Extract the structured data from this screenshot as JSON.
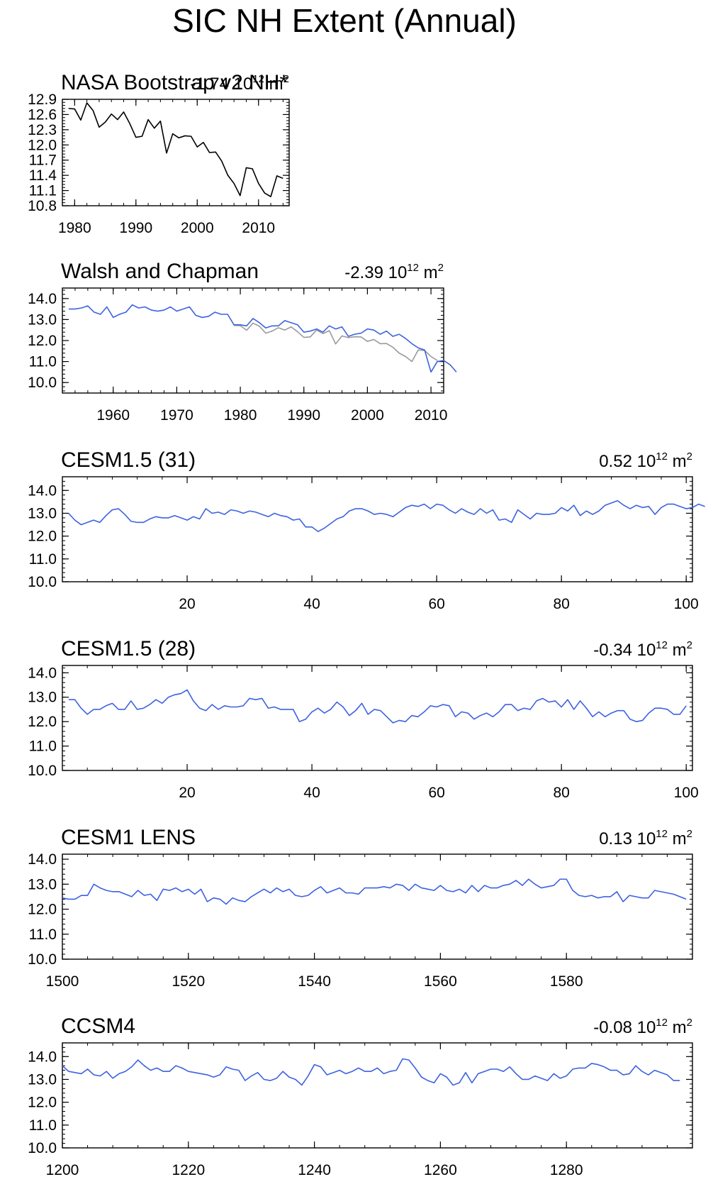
{
  "figure_title": "SIC NH Extent (Annual)",
  "units": "10",
  "units_exp": "12",
  "units_m": "m",
  "units_sq": "2",
  "colors": {
    "model": "#3d62e0",
    "nasa": "#000000",
    "obs": "#9a9a9a",
    "axis": "#000000"
  },
  "chart_data": [
    {
      "type": "line",
      "title": "NASA Bootstrap v2 NH*",
      "trend": "-1.74",
      "xlim": [
        1978,
        2015
      ],
      "ylim": [
        10.8,
        12.9
      ],
      "yticks": [
        10.8,
        11.1,
        11.4,
        11.7,
        12.0,
        12.3,
        12.6,
        12.9
      ],
      "ytick_labels": [
        "10.8",
        "11.1",
        "11.4",
        "11.7",
        "12.0",
        "12.3",
        "12.6",
        "12.9"
      ],
      "xticks": [
        1980,
        1990,
        2000,
        2010
      ],
      "xtick_labels": [
        "1980",
        "1990",
        "2000",
        "2010"
      ],
      "x_start": 1979,
      "series": [
        {
          "name": "NASA Bootstrap",
          "color": "nasa",
          "values": [
            12.72,
            12.71,
            12.49,
            12.83,
            12.68,
            12.35,
            12.45,
            12.61,
            12.5,
            12.65,
            12.42,
            12.15,
            12.17,
            12.5,
            12.33,
            12.47,
            11.84,
            12.22,
            12.14,
            12.18,
            12.17,
            11.96,
            12.05,
            11.85,
            11.86,
            11.68,
            11.4,
            11.24,
            11.0,
            11.55,
            11.53,
            11.24,
            11.05,
            10.98,
            11.39,
            11.34
          ]
        }
      ]
    },
    {
      "type": "line",
      "title": "Walsh and Chapman",
      "trend": "-2.39",
      "xlim": [
        1952,
        2012
      ],
      "ylim": [
        9.5,
        14.5
      ],
      "yticks": [
        10.0,
        11.0,
        12.0,
        13.0,
        14.0
      ],
      "ytick_labels": [
        "10.0",
        "11.0",
        "12.0",
        "13.0",
        "14.0"
      ],
      "xticks": [
        1960,
        1970,
        1980,
        1990,
        2000,
        2010
      ],
      "xtick_labels": [
        "1960",
        "1970",
        "1980",
        "1990",
        "2000",
        "2010"
      ],
      "x_start": 1953,
      "series": [
        {
          "name": "Walsh and Chapman",
          "color": "model",
          "values": [
            13.5,
            13.5,
            13.55,
            13.65,
            13.35,
            13.25,
            13.6,
            13.1,
            13.25,
            13.35,
            13.7,
            13.55,
            13.6,
            13.45,
            13.4,
            13.45,
            13.6,
            13.4,
            13.5,
            13.6,
            13.2,
            13.1,
            13.15,
            13.35,
            13.25,
            13.25,
            12.75,
            12.75,
            12.7,
            13.05,
            12.85,
            12.6,
            12.7,
            12.7,
            12.95,
            12.85,
            12.75,
            12.4,
            12.45,
            12.55,
            12.4,
            12.7,
            12.55,
            12.65,
            12.2,
            12.3,
            12.35,
            12.55,
            12.5,
            12.3,
            12.45,
            12.2,
            12.3,
            12.1,
            11.85,
            11.65,
            11.55,
            10.5,
            11.0,
            11.05,
            10.85,
            10.5
          ]
        },
        {
          "name": "NASA Bootstrap",
          "color": "obs",
          "x_start": 1979,
          "values": [
            12.72,
            12.71,
            12.49,
            12.83,
            12.68,
            12.35,
            12.45,
            12.61,
            12.5,
            12.65,
            12.42,
            12.15,
            12.17,
            12.5,
            12.33,
            12.47,
            11.84,
            12.22,
            12.14,
            12.18,
            12.17,
            11.96,
            12.05,
            11.85,
            11.86,
            11.68,
            11.4,
            11.24,
            11.0,
            11.55,
            11.53,
            11.24,
            11.05
          ]
        }
      ]
    },
    {
      "type": "line",
      "title": "CESM1.5 (31)",
      "trend": "0.52",
      "xlim": [
        0,
        101
      ],
      "ylim": [
        10.0,
        14.6
      ],
      "yticks": [
        10.0,
        11.0,
        12.0,
        13.0,
        14.0
      ],
      "ytick_labels": [
        "10.0",
        "11.0",
        "12.0",
        "13.0",
        "14.0"
      ],
      "xticks": [
        20,
        40,
        60,
        80,
        100
      ],
      "xtick_labels": [
        "20",
        "40",
        "60",
        "80",
        "100"
      ],
      "x_start": 1,
      "series": [
        {
          "name": "CESM1.5 (31)",
          "color": "model",
          "values": [
            13.0,
            12.7,
            12.5,
            12.6,
            12.7,
            12.6,
            12.9,
            13.15,
            13.2,
            12.95,
            12.65,
            12.6,
            12.6,
            12.75,
            12.85,
            12.8,
            12.8,
            12.9,
            12.8,
            12.7,
            12.85,
            12.75,
            13.2,
            13.0,
            13.05,
            12.95,
            13.15,
            13.1,
            13.0,
            13.1,
            13.05,
            12.95,
            12.85,
            13.0,
            12.9,
            12.85,
            12.7,
            12.75,
            12.4,
            12.4,
            12.2,
            12.35,
            12.55,
            12.75,
            12.85,
            13.1,
            13.2,
            13.2,
            13.1,
            12.95,
            13.0,
            12.95,
            12.85,
            13.05,
            13.25,
            13.35,
            13.3,
            13.4,
            13.2,
            13.4,
            13.35,
            13.15,
            13.0,
            13.2,
            13.05,
            12.95,
            13.2,
            13.0,
            13.15,
            12.7,
            12.75,
            12.6,
            13.15,
            12.95,
            12.75,
            13.0,
            12.95,
            12.95,
            13.0,
            13.25,
            13.1,
            13.35,
            12.9,
            13.1,
            12.95,
            13.1,
            13.35,
            13.45,
            13.55,
            13.35,
            13.2,
            13.35,
            13.25,
            13.3,
            12.95,
            13.25,
            13.4,
            13.4,
            13.3,
            13.2,
            13.25,
            13.4,
            13.3
          ]
        }
      ]
    },
    {
      "type": "line",
      "title": "CESM1.5 (28)",
      "trend": "-0.34",
      "xlim": [
        0,
        101
      ],
      "ylim": [
        10.0,
        14.3
      ],
      "yticks": [
        10.0,
        11.0,
        12.0,
        13.0,
        14.0
      ],
      "ytick_labels": [
        "10.0",
        "11.0",
        "12.0",
        "13.0",
        "14.0"
      ],
      "xticks": [
        20,
        40,
        60,
        80,
        100
      ],
      "xtick_labels": [
        "20",
        "40",
        "60",
        "80",
        "100"
      ],
      "x_start": 1,
      "series": [
        {
          "name": "CESM1.5 (28)",
          "color": "model",
          "values": [
            12.9,
            12.9,
            12.55,
            12.3,
            12.5,
            12.5,
            12.65,
            12.75,
            12.5,
            12.5,
            12.85,
            12.5,
            12.55,
            12.7,
            12.9,
            12.75,
            13.0,
            13.1,
            13.15,
            13.3,
            12.85,
            12.55,
            12.45,
            12.7,
            12.5,
            12.65,
            12.6,
            12.6,
            12.65,
            12.95,
            12.9,
            12.95,
            12.55,
            12.6,
            12.5,
            12.5,
            12.5,
            12.0,
            12.1,
            12.4,
            12.55,
            12.35,
            12.5,
            12.8,
            12.6,
            12.25,
            12.45,
            12.75,
            12.3,
            12.5,
            12.45,
            12.2,
            11.95,
            12.05,
            12.0,
            12.25,
            12.2,
            12.4,
            12.65,
            12.6,
            12.7,
            12.65,
            12.2,
            12.4,
            12.35,
            12.1,
            12.25,
            12.35,
            12.2,
            12.4,
            12.7,
            12.7,
            12.45,
            12.55,
            12.5,
            12.85,
            12.95,
            12.8,
            12.85,
            12.6,
            12.9,
            12.5,
            12.85,
            12.55,
            12.2,
            12.4,
            12.2,
            12.35,
            12.45,
            12.45,
            12.1,
            12.0,
            12.05,
            12.35,
            12.55,
            12.55,
            12.5,
            12.3,
            12.3,
            12.65
          ]
        }
      ]
    },
    {
      "type": "line",
      "title": "CESM1 LENS",
      "trend": "0.13",
      "xlim": [
        1500,
        1600
      ],
      "ylim": [
        10.0,
        14.2
      ],
      "yticks": [
        10.0,
        11.0,
        12.0,
        13.0,
        14.0
      ],
      "ytick_labels": [
        "10.0",
        "11.0",
        "12.0",
        "13.0",
        "14.0"
      ],
      "xticks": [
        1500,
        1520,
        1540,
        1560,
        1580
      ],
      "xtick_labels": [
        "1500",
        "1520",
        "1540",
        "1560",
        "1580"
      ],
      "x_start": 1500,
      "series": [
        {
          "name": "CESM1 LENS",
          "color": "model",
          "values": [
            12.45,
            12.4,
            12.4,
            12.55,
            12.55,
            13.0,
            12.85,
            12.75,
            12.7,
            12.7,
            12.6,
            12.5,
            12.75,
            12.55,
            12.6,
            12.35,
            12.8,
            12.75,
            12.85,
            12.7,
            12.8,
            12.6,
            12.8,
            12.3,
            12.45,
            12.4,
            12.2,
            12.45,
            12.35,
            12.3,
            12.5,
            12.65,
            12.8,
            12.65,
            12.85,
            12.7,
            12.8,
            12.55,
            12.5,
            12.55,
            12.75,
            12.9,
            12.65,
            12.75,
            12.85,
            12.65,
            12.65,
            12.6,
            12.85,
            12.85,
            12.85,
            12.9,
            12.85,
            13.0,
            12.95,
            12.75,
            13.0,
            12.85,
            12.8,
            12.75,
            12.95,
            12.75,
            12.7,
            12.8,
            12.65,
            12.95,
            12.7,
            12.95,
            12.85,
            12.85,
            12.95,
            13.0,
            13.15,
            12.95,
            13.2,
            13.0,
            12.85,
            12.9,
            12.95,
            13.2,
            13.2,
            12.75,
            12.55,
            12.5,
            12.55,
            12.45,
            12.5,
            12.5,
            12.7,
            12.3,
            12.55,
            12.5,
            12.45,
            12.45,
            12.75,
            12.7,
            12.65,
            12.6,
            12.5,
            12.4
          ]
        }
      ]
    },
    {
      "type": "line",
      "title": "CCSM4",
      "trend": "-0.08",
      "xlim": [
        1200,
        1300
      ],
      "ylim": [
        10.0,
        14.6
      ],
      "yticks": [
        10.0,
        11.0,
        12.0,
        13.0,
        14.0
      ],
      "ytick_labels": [
        "10.0",
        "11.0",
        "12.0",
        "13.0",
        "14.0"
      ],
      "xticks": [
        1200,
        1220,
        1240,
        1260,
        1280
      ],
      "xtick_labels": [
        "1200",
        "1220",
        "1240",
        "1260",
        "1280"
      ],
      "x_start": 1200,
      "series": [
        {
          "name": "CCSM4",
          "color": "model",
          "values": [
            13.6,
            13.35,
            13.3,
            13.25,
            13.45,
            13.2,
            13.15,
            13.35,
            13.05,
            13.25,
            13.35,
            13.55,
            13.85,
            13.6,
            13.4,
            13.5,
            13.35,
            13.35,
            13.6,
            13.5,
            13.35,
            13.3,
            13.25,
            13.2,
            13.1,
            13.2,
            13.55,
            13.45,
            13.4,
            12.95,
            13.15,
            13.3,
            13.0,
            12.95,
            13.05,
            13.35,
            13.1,
            13.0,
            12.75,
            13.15,
            13.65,
            13.55,
            13.2,
            13.3,
            13.4,
            13.25,
            13.35,
            13.5,
            13.35,
            13.35,
            13.5,
            13.25,
            13.35,
            13.4,
            13.9,
            13.85,
            13.5,
            13.1,
            12.95,
            12.85,
            13.25,
            13.1,
            12.75,
            12.85,
            13.3,
            12.85,
            13.25,
            13.35,
            13.45,
            13.45,
            13.35,
            13.55,
            13.25,
            13.0,
            13.0,
            13.15,
            13.05,
            12.95,
            13.25,
            13.05,
            13.15,
            13.45,
            13.5,
            13.5,
            13.7,
            13.65,
            13.55,
            13.4,
            13.4,
            13.2,
            13.25,
            13.6,
            13.35,
            13.2,
            13.4,
            13.3,
            13.2,
            12.95,
            12.95
          ]
        }
      ]
    }
  ]
}
